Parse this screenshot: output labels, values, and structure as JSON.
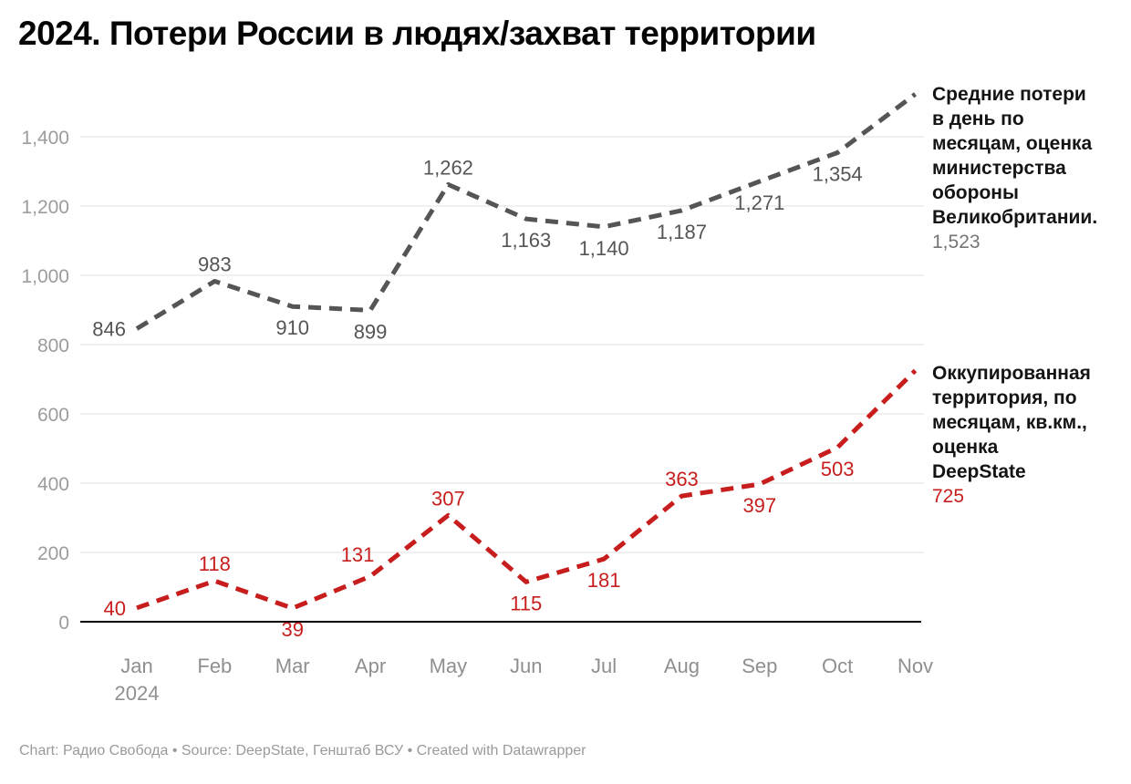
{
  "title": "2024. Потери России в людях/захват территории",
  "footer": "Chart: Радио Свобода • Source: DeepState, Генштаб ВСУ • Created with Datawrapper",
  "annotations": {
    "uk": {
      "label_lines": [
        "Средние потери",
        "в день по",
        "месяцам, оценка",
        "министерства",
        "обороны",
        "Великобритании."
      ],
      "value": "1,523"
    },
    "territory": {
      "label_lines": [
        "Оккупированная",
        "территория, по",
        "месяцам, кв.км.,",
        "оценка",
        "DeepState"
      ],
      "value": "725"
    }
  },
  "chart_data": {
    "type": "line",
    "line_style": "dashed",
    "grid": true,
    "categories": [
      "Jan",
      "Feb",
      "Mar",
      "Apr",
      "May",
      "Jun",
      "Jul",
      "Aug",
      "Sep",
      "Oct",
      "Nov"
    ],
    "first_tick_year": "2024",
    "yticks": [
      0,
      200,
      400,
      600,
      800,
      1000,
      1200,
      1400
    ],
    "ylim": [
      0,
      1530
    ],
    "colors": {
      "uk_losses": "#555555",
      "territory": "#c71e1d",
      "gridline": "#e2e2e2",
      "zero_axis": "#000000",
      "axis_text": "#9c9c9c",
      "month_text": "#8f8f8f"
    },
    "series": [
      {
        "id": "uk-losses",
        "name": "Средние потери в день по месяцам, оценка министерства обороны Великобритании.",
        "color": "#555555",
        "values": [
          846,
          983,
          910,
          899,
          1262,
          1163,
          1140,
          1187,
          1271,
          1354,
          1523
        ],
        "label_positions": [
          "left",
          "above",
          "below",
          "below",
          "above",
          "below",
          "below",
          "below",
          "below",
          "below",
          "none"
        ]
      },
      {
        "id": "territory",
        "name": "Оккупированная территория, по месяцам, кв.км., оценка DeepState",
        "color": "#c71e1d",
        "values": [
          40,
          118,
          39,
          131,
          307,
          115,
          181,
          363,
          397,
          503,
          725
        ],
        "label_positions": [
          "left",
          "above",
          "below",
          "above-left",
          "above",
          "below",
          "below",
          "above",
          "below",
          "below",
          "none"
        ]
      }
    ]
  }
}
